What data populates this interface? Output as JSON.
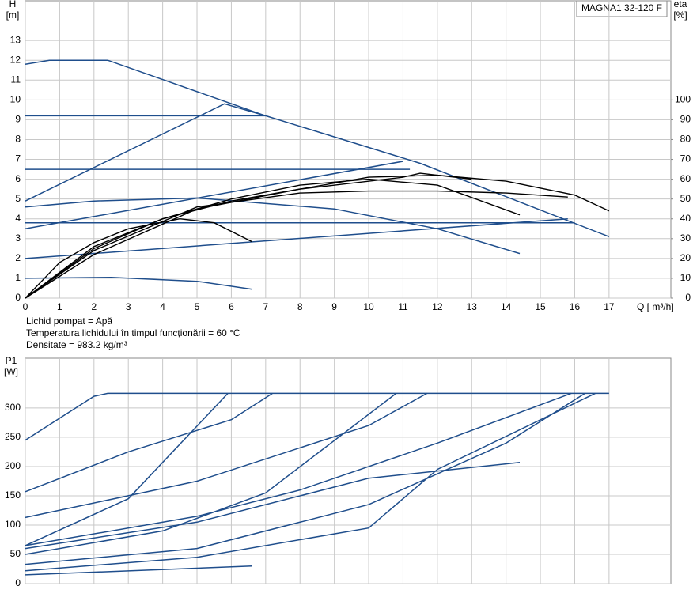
{
  "chart_data": [
    {
      "type": "line",
      "title": "MAGNA1 32-120 F",
      "y_label": "H",
      "y_unit": "[m]",
      "y2_label": "eta",
      "y2_unit": "[%]",
      "x_label": "Q [ m³/h]",
      "annotations": [
        "Lichid pompat = Apă",
        " Temperatura lichidului în timpul funcţionării = 60  °C",
        "Densitate = 983.2  kg/m³"
      ],
      "xlim": [
        0,
        18.8
      ],
      "xticks": [
        0,
        1,
        2,
        3,
        4,
        5,
        6,
        7,
        8,
        9,
        10,
        11,
        12,
        13,
        14,
        15,
        16,
        17
      ],
      "ylim": [
        0,
        15
      ],
      "yticks": [
        0,
        1,
        2,
        3,
        4,
        5,
        6,
        7,
        8,
        9,
        10,
        11,
        12,
        13
      ],
      "y2lim": [
        0,
        150
      ],
      "y2ticks": [
        0,
        10,
        20,
        30,
        40,
        50,
        60,
        70,
        80,
        90,
        100
      ],
      "grid": true,
      "series": [
        {
          "color": "#1f4e8c",
          "x": [
            0,
            0.7,
            2.4,
            7,
            11.5,
            17
          ],
          "values": [
            11.8,
            12,
            12,
            9.2,
            6.8,
            3.1
          ]
        },
        {
          "color": "#1f4e8c",
          "x": [
            0,
            7
          ],
          "values": [
            9.2,
            9.2
          ]
        },
        {
          "color": "#1f4e8c",
          "x": [
            0,
            5.8,
            7
          ],
          "values": [
            4.9,
            9.8,
            9.2
          ]
        },
        {
          "color": "#1f4e8c",
          "x": [
            0,
            11.2
          ],
          "values": [
            6.5,
            6.5
          ]
        },
        {
          "color": "#1f4e8c",
          "x": [
            0,
            11
          ],
          "values": [
            3.5,
            6.9
          ]
        },
        {
          "color": "#1f4e8c",
          "x": [
            0,
            2,
            5,
            9,
            12,
            14.4
          ],
          "values": [
            4.6,
            4.9,
            5.05,
            4.5,
            3.5,
            2.25
          ]
        },
        {
          "color": "#1f4e8c",
          "x": [
            0,
            16
          ],
          "values": [
            3.8,
            3.8
          ]
        },
        {
          "color": "#1f4e8c",
          "x": [
            0,
            15.8
          ],
          "values": [
            2,
            4
          ]
        },
        {
          "color": "#1f4e8c",
          "x": [
            0,
            2.5,
            5,
            6.6
          ],
          "values": [
            1,
            1.05,
            0.85,
            0.45
          ]
        },
        {
          "color": "#000000",
          "axis": "y2",
          "x": [
            0,
            1,
            2,
            3,
            4.5,
            5.5,
            6.6
          ],
          "values": [
            0,
            18,
            28,
            35,
            40,
            38,
            28.5
          ]
        },
        {
          "color": "#000000",
          "axis": "y2",
          "x": [
            0,
            2,
            4,
            6,
            8,
            10,
            12,
            14.4
          ],
          "values": [
            0,
            26,
            40,
            50,
            57,
            60,
            57,
            42
          ]
        },
        {
          "color": "#000000",
          "axis": "y2",
          "x": [
            0,
            2,
            4,
            6,
            8,
            10,
            12,
            14,
            16,
            17
          ],
          "values": [
            0,
            25,
            40,
            49,
            55,
            61,
            62,
            59,
            52,
            44
          ]
        },
        {
          "color": "#000000",
          "axis": "y2",
          "x": [
            0,
            2,
            5,
            8,
            10,
            12,
            14,
            15.8
          ],
          "values": [
            0,
            24,
            46,
            53,
            54,
            54,
            53,
            51
          ]
        },
        {
          "color": "#000000",
          "axis": "y2",
          "x": [
            0,
            2,
            5,
            8,
            11,
            11.5,
            13
          ],
          "values": [
            0,
            22,
            45,
            55,
            61,
            63,
            60
          ]
        }
      ]
    },
    {
      "type": "line",
      "y_label": "P1",
      "y_unit": "[W]",
      "xlim": [
        0,
        18.8
      ],
      "xticks": [
        0,
        1,
        2,
        3,
        4,
        5,
        6,
        7,
        8,
        9,
        10,
        11,
        12,
        13,
        14,
        15,
        16,
        17
      ],
      "show_xtick_labels": false,
      "ylim": [
        0,
        385
      ],
      "yticks": [
        0,
        50,
        100,
        150,
        200,
        250,
        300
      ],
      "grid": true,
      "series": [
        {
          "color": "#1f4e8c",
          "x": [
            0,
            2,
            2.4,
            17
          ],
          "values": [
            245,
            320,
            325,
            325
          ]
        },
        {
          "color": "#1f4e8c",
          "x": [
            0,
            3,
            6,
            7.2
          ],
          "values": [
            157,
            225,
            280,
            325
          ]
        },
        {
          "color": "#1f4e8c",
          "x": [
            0,
            5,
            10,
            11.7
          ],
          "values": [
            113,
            175,
            270,
            325
          ]
        },
        {
          "color": "#1f4e8c",
          "x": [
            0,
            3,
            5.9
          ],
          "values": [
            65,
            145,
            325
          ]
        },
        {
          "color": "#1f4e8c",
          "x": [
            0,
            5,
            8,
            12,
            15.9
          ],
          "values": [
            65,
            115,
            160,
            240,
            325
          ]
        },
        {
          "color": "#1f4e8c",
          "x": [
            0,
            5,
            10,
            14.4
          ],
          "values": [
            60,
            105,
            180,
            207
          ]
        },
        {
          "color": "#1f4e8c",
          "x": [
            0,
            4,
            7,
            10.8
          ],
          "values": [
            50,
            90,
            155,
            325
          ]
        },
        {
          "color": "#1f4e8c",
          "x": [
            0,
            5,
            10,
            14,
            16.3
          ],
          "values": [
            33,
            60,
            135,
            240,
            325
          ]
        },
        {
          "color": "#1f4e8c",
          "x": [
            0,
            5,
            10,
            12,
            16.6
          ],
          "values": [
            22,
            45,
            95,
            195,
            325
          ]
        },
        {
          "color": "#1f4e8c",
          "x": [
            0,
            6.6
          ],
          "values": [
            15,
            30
          ]
        }
      ]
    }
  ]
}
